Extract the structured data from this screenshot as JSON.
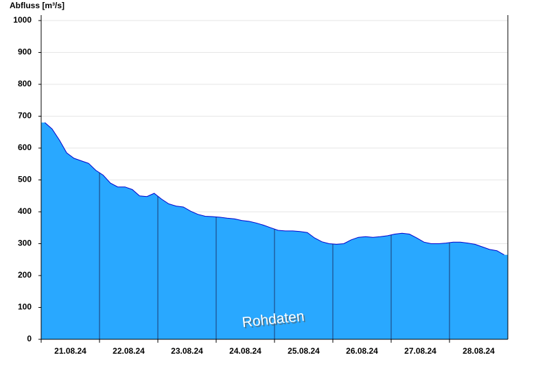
{
  "chart_data": {
    "type": "area",
    "y_label": "Abfluss [m³/s]",
    "annotation": "Rohdaten",
    "categories": [
      "21.08.24",
      "22.08.24",
      "23.08.24",
      "24.08.24",
      "25.08.24",
      "26.08.24",
      "27.08.24",
      "28.08.24"
    ],
    "values": [
      [
        680,
        660,
        625,
        585,
        568,
        560,
        552,
        530
      ],
      [
        515,
        490,
        478,
        478,
        470,
        450,
        448,
        458
      ],
      [
        440,
        425,
        418,
        415,
        402,
        392,
        386,
        385
      ],
      [
        383,
        380,
        378,
        373,
        370,
        365,
        358,
        350
      ],
      [
        342,
        340,
        340,
        338,
        335,
        318,
        306,
        300
      ],
      [
        298,
        300,
        312,
        320,
        322,
        320,
        322,
        325
      ],
      [
        330,
        333,
        330,
        318,
        305,
        300,
        300,
        302
      ],
      [
        305,
        305,
        302,
        298,
        290,
        282,
        278,
        265
      ]
    ],
    "color": "#29a8ff",
    "line_color": "#0000cc",
    "ylim": [
      0,
      1000
    ],
    "yticks": [
      0,
      100,
      200,
      300,
      400,
      500,
      600,
      700,
      800,
      900,
      1000
    ],
    "grid": true
  }
}
